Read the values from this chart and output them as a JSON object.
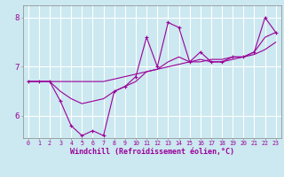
{
  "x": [
    0,
    1,
    2,
    3,
    4,
    5,
    6,
    7,
    8,
    9,
    10,
    11,
    12,
    13,
    14,
    15,
    16,
    17,
    18,
    19,
    20,
    21,
    22,
    23
  ],
  "y_main": [
    6.7,
    6.7,
    6.7,
    6.3,
    5.8,
    5.6,
    5.7,
    5.6,
    6.5,
    6.6,
    6.8,
    7.6,
    7.0,
    7.9,
    7.8,
    7.1,
    7.3,
    7.1,
    7.1,
    7.2,
    7.2,
    7.3,
    8.0,
    7.7
  ],
  "y_smooth1": [
    6.7,
    6.7,
    6.7,
    6.7,
    6.7,
    6.7,
    6.7,
    6.7,
    6.75,
    6.8,
    6.85,
    6.9,
    6.95,
    7.0,
    7.05,
    7.1,
    7.1,
    7.15,
    7.15,
    7.2,
    7.2,
    7.25,
    7.35,
    7.5
  ],
  "y_smooth2": [
    6.7,
    6.7,
    6.7,
    6.5,
    6.35,
    6.25,
    6.3,
    6.35,
    6.5,
    6.6,
    6.7,
    6.9,
    6.95,
    7.1,
    7.2,
    7.1,
    7.15,
    7.1,
    7.1,
    7.15,
    7.2,
    7.3,
    7.6,
    7.7
  ],
  "color_main": "#990099",
  "bg_color": "#cce8f0",
  "grid_color": "#ffffff",
  "xlabel": "Windchill (Refroidissement éolien,°C)",
  "ylim": [
    5.55,
    8.25
  ],
  "yticks": [
    6,
    7,
    8
  ],
  "xlim": [
    -0.5,
    23.5
  ],
  "xticks": [
    0,
    1,
    2,
    3,
    4,
    5,
    6,
    7,
    8,
    9,
    10,
    11,
    12,
    13,
    14,
    15,
    16,
    17,
    18,
    19,
    20,
    21,
    22,
    23
  ]
}
